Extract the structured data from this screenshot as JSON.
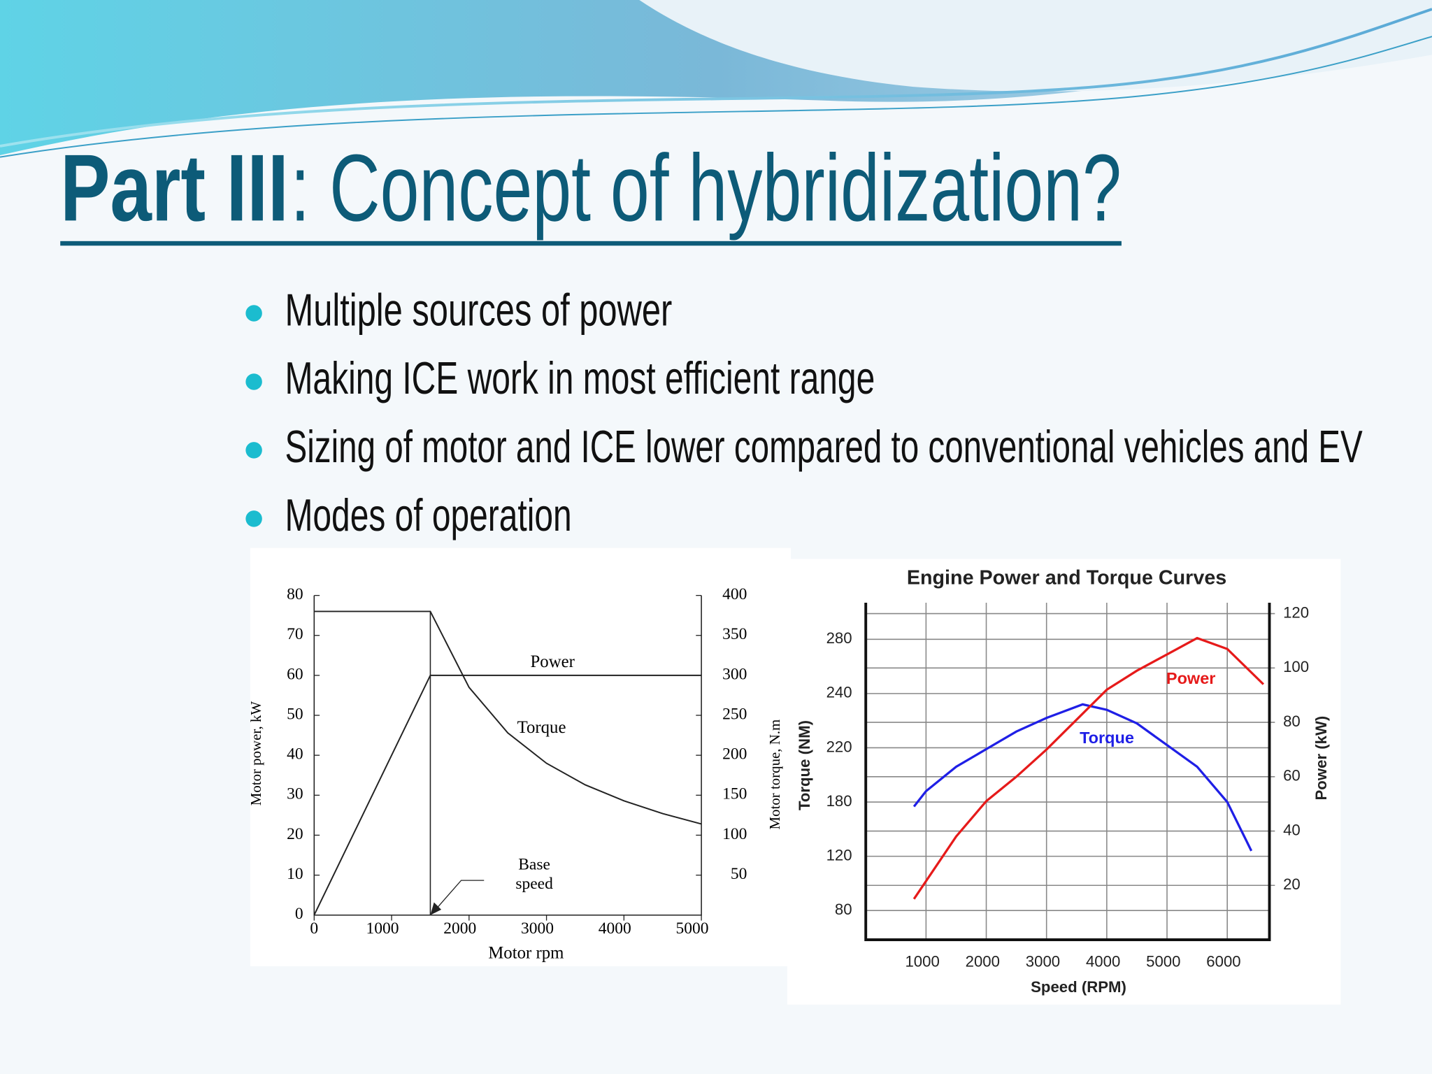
{
  "slide": {
    "title_bold": "Part III",
    "title_rest": ": Concept of hybridization?",
    "bullets": [
      "Multiple sources of power",
      "Making ICE work in most efficient range",
      "Sizing of motor and ICE lower compared to conventional vehicles and EV",
      "Modes of operation"
    ]
  },
  "chart_data": [
    {
      "type": "line",
      "xlabel": "Motor rpm",
      "ylabel": "Motor power, kW",
      "y2label": "Motor torque, N.m",
      "xlim": [
        0,
        5000
      ],
      "xticks": [
        0,
        1000,
        2000,
        3000,
        4000,
        5000
      ],
      "ylim": [
        0,
        80
      ],
      "yticks": [
        0,
        10,
        20,
        30,
        40,
        50,
        60,
        70,
        80
      ],
      "y2lim": [
        0,
        400
      ],
      "y2ticks": [
        50,
        100,
        150,
        200,
        250,
        300,
        350,
        400
      ],
      "base_speed": 1500,
      "annotation_lines": [
        "Base",
        "speed"
      ],
      "series": [
        {
          "name": "Power",
          "color": "#222222",
          "x": [
            0,
            1500,
            5000
          ],
          "values": [
            0,
            60,
            60
          ]
        },
        {
          "name": "Torque",
          "color": "#222222",
          "axis": "y2",
          "x": [
            0,
            1500,
            2000,
            2500,
            3000,
            3500,
            4000,
            4500,
            5000
          ],
          "values": [
            380,
            380,
            285,
            228,
            190,
            163,
            143,
            127,
            114
          ]
        }
      ]
    },
    {
      "type": "line",
      "title": "Engine Power and Torque Curves",
      "xlabel": "Speed (RPM)",
      "ylabel": "Torque (NM)",
      "y2label": "Power (kW)",
      "xlim": [
        0,
        6700
      ],
      "xticks": [
        1000,
        2000,
        3000,
        4000,
        5000,
        6000
      ],
      "ylim": [
        57,
        307
      ],
      "yticks": [
        80,
        120,
        180,
        220,
        240,
        280
      ],
      "y2lim": [
        0,
        124
      ],
      "y2ticks": [
        20,
        40,
        60,
        80,
        100,
        120
      ],
      "grid": true,
      "series": [
        {
          "name": "Torque",
          "color": "#1f1fe6",
          "x": [
            800,
            1000,
            1500,
            2000,
            2500,
            3000,
            3600,
            4000,
            4500,
            5000,
            5500,
            6000,
            6400
          ],
          "values": [
            175,
            188,
            206,
            219,
            226,
            231,
            236,
            234,
            229,
            221,
            206,
            180,
            126
          ]
        },
        {
          "name": "Power",
          "color": "#e61a1a",
          "axis": "y2",
          "x": [
            800,
            1500,
            2000,
            2500,
            3000,
            3500,
            4000,
            4500,
            5000,
            5500,
            6000,
            6600
          ],
          "values": [
            15,
            38,
            51,
            60,
            70,
            81,
            92,
            99,
            105,
            111,
            107,
            94
          ]
        }
      ]
    }
  ]
}
